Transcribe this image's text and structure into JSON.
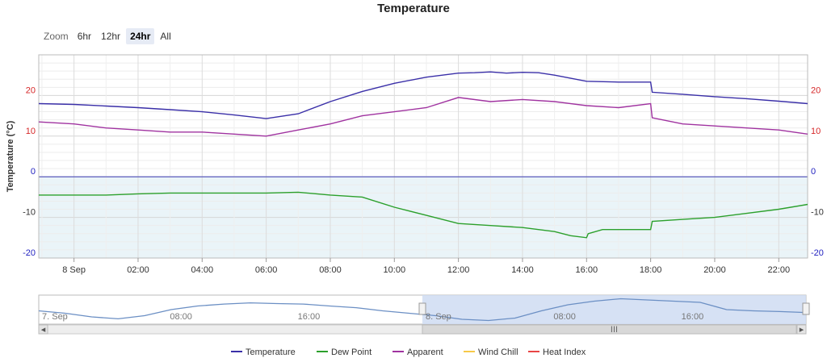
{
  "chart_data": {
    "type": "line",
    "title": "Temperature",
    "ylabel": "Temperature (°C)",
    "ylim": [
      -20,
      30
    ],
    "y_ticks": [
      20,
      10,
      0,
      -10,
      -20
    ],
    "y_tick_colors": {
      "20": "#d62728",
      "10": "#d62728",
      "0": "#1f1fbf",
      "-10": "#333333",
      "-20": "#1f1fbf"
    },
    "x_tick_labels": [
      "8 Sep",
      "02:00",
      "04:00",
      "06:00",
      "08:00",
      "10:00",
      "12:00",
      "14:00",
      "16:00",
      "18:00",
      "20:00",
      "22:00"
    ],
    "x_hours": [
      0,
      2,
      4,
      6,
      8,
      10,
      12,
      14,
      16,
      18,
      20,
      22
    ],
    "xlim_hours": [
      -1.1,
      22.9
    ],
    "negative_zone_fill": "#eaf4f8",
    "grid": true,
    "series": [
      {
        "name": "Temperature",
        "color": "#3a2fa8",
        "x": [
          -1.1,
          0,
          1,
          2,
          3,
          4,
          5,
          6,
          7,
          8,
          9,
          10,
          11,
          12,
          12.5,
          13,
          13.5,
          14,
          14.5,
          15,
          16,
          17,
          18.0,
          18.05,
          19,
          20,
          21,
          22,
          22.9
        ],
        "y": [
          18.0,
          17.8,
          17.4,
          17.0,
          16.5,
          16.0,
          15.2,
          14.3,
          15.5,
          18.5,
          21.0,
          23.0,
          24.5,
          25.5,
          25.6,
          25.8,
          25.5,
          25.7,
          25.6,
          25.0,
          23.5,
          23.3,
          23.3,
          20.8,
          20.3,
          19.7,
          19.2,
          18.6,
          18.0
        ]
      },
      {
        "name": "Dew Point",
        "color": "#2ca02c",
        "x": [
          -1.1,
          0,
          1,
          2,
          3,
          4,
          5,
          6,
          7,
          8,
          9,
          10,
          11,
          12,
          13,
          14,
          15,
          15.5,
          16,
          16.05,
          16.5,
          17,
          18,
          18.05,
          19,
          20,
          21,
          22,
          22.9
        ],
        "y": [
          -4.5,
          -4.5,
          -4.5,
          -4.2,
          -4.0,
          -4.0,
          -4.0,
          -4.0,
          -3.8,
          -4.5,
          -5.0,
          -7.5,
          -9.5,
          -11.5,
          -12.0,
          -12.5,
          -13.5,
          -14.5,
          -15.0,
          -14.0,
          -13.0,
          -13.0,
          -13.0,
          -11.0,
          -10.5,
          -10.0,
          -9.0,
          -8.0,
          -6.8
        ]
      },
      {
        "name": "Apparent",
        "color": "#a033a0",
        "x": [
          -1.1,
          0,
          1,
          2,
          3,
          4,
          5,
          6,
          7,
          8,
          9,
          10,
          11,
          12,
          13,
          14,
          15,
          16,
          17,
          18.0,
          18.05,
          19,
          20,
          21,
          22,
          22.9
        ],
        "y": [
          13.5,
          13.0,
          12.0,
          11.5,
          11.0,
          11.0,
          10.5,
          10.0,
          11.5,
          13.0,
          15.0,
          16.0,
          17.0,
          19.5,
          18.5,
          19.0,
          18.5,
          17.5,
          17.0,
          18.0,
          14.5,
          13.0,
          12.5,
          12.0,
          11.5,
          10.5
        ]
      },
      {
        "name": "Wind Chill",
        "color": "#f7c948",
        "x": [],
        "y": []
      },
      {
        "name": "Heat Index",
        "color": "#e84545",
        "x": [],
        "y": []
      }
    ]
  },
  "zoom": {
    "label": "Zoom",
    "buttons": [
      {
        "label": "6hr",
        "active": false
      },
      {
        "label": "12hr",
        "active": false
      },
      {
        "label": "24hr",
        "active": true
      },
      {
        "label": "All",
        "active": false
      }
    ]
  },
  "navigator": {
    "labels": [
      "7. Sep",
      "08:00",
      "16:00",
      "8. Sep",
      "08:00",
      "16:00"
    ],
    "label_hours": [
      -24,
      -16,
      -8,
      0,
      8,
      16
    ],
    "xlim_hours": [
      -24,
      24
    ],
    "selected_range": [
      0,
      24
    ],
    "series_color": "#6b8fc4",
    "values": [
      17.5,
      16.5,
      15.0,
      14.2,
      15.5,
      18.0,
      19.5,
      20.3,
      20.8,
      20.5,
      20.3,
      19.5,
      18.8,
      17.5,
      16.5,
      15.5,
      14.0,
      13.5,
      14.5,
      17.5,
      20.0,
      21.5,
      22.5,
      22.0,
      21.5,
      21.0,
      18.0,
      17.5,
      17.2,
      16.8
    ],
    "scroll_grip": "III"
  }
}
